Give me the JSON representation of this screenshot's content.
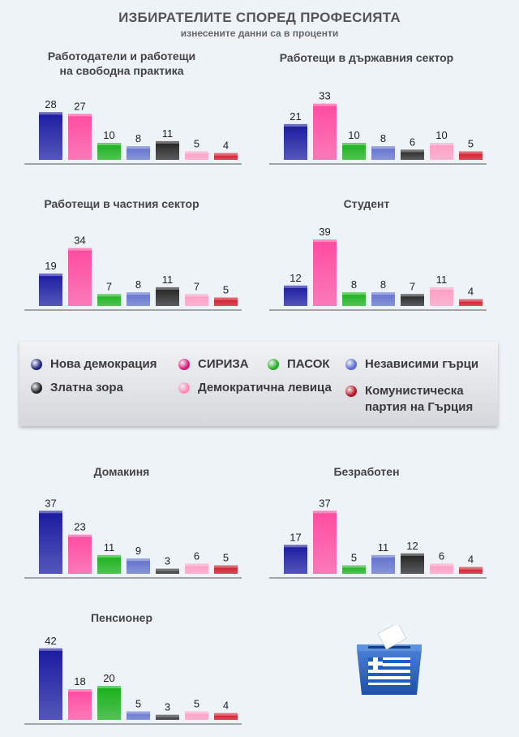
{
  "title": "ИЗБИРАТЕЛИТЕ СПОРЕД ПРОФЕСИЯТА",
  "subtitle": "изнесените данни са в проценти",
  "legend": [
    {
      "name": "Нова демокрация",
      "color": "#1a237e"
    },
    {
      "name": "СИРИЗА",
      "color": "#e0147a"
    },
    {
      "name": "ПАСОК",
      "color": "#22b022"
    },
    {
      "name": "Независими гърци",
      "color": "#5a6bd0"
    },
    {
      "name": "Златна зора",
      "color": "#222222"
    },
    {
      "name": "Демократична левица",
      "color": "#ff8ab8"
    },
    {
      "name": "Комунистическа партия на Гърция",
      "color": "#c0101c"
    }
  ],
  "bar_colors": [
    "#1a1aa0",
    "#ff4ba0",
    "#18b018",
    "#6070cc",
    "#222222",
    "#ff9cc4",
    "#d01020"
  ],
  "chart_data": [
    {
      "type": "bar",
      "title_lines": [
        "Работодатели и работещи",
        "на свободна практика"
      ],
      "categories": [
        "Нова демокрация",
        "СИРИЗА",
        "ПАСОК",
        "Независими гърци",
        "Златна зора",
        "Демократична левица",
        "Комунистическа партия на Гърция"
      ],
      "values": [
        28,
        27,
        10,
        8,
        11,
        5,
        4
      ]
    },
    {
      "type": "bar",
      "title_lines": [
        "Работещи в държавния сектор"
      ],
      "categories": [
        "Нова демокрация",
        "СИРИЗА",
        "ПАСОК",
        "Независими гърци",
        "Златна зора",
        "Демократична левица",
        "Комунистическа партия на Гърция"
      ],
      "values": [
        21,
        33,
        10,
        8,
        6,
        10,
        5
      ]
    },
    {
      "type": "bar",
      "title_lines": [
        "Работещи в частния сектор"
      ],
      "categories": [
        "Нова демокрация",
        "СИРИЗА",
        "ПАСОК",
        "Независими гърци",
        "Златна зора",
        "Демократична левица",
        "Комунистическа партия на Гърция"
      ],
      "values": [
        19,
        34,
        7,
        8,
        11,
        7,
        5
      ]
    },
    {
      "type": "bar",
      "title_lines": [
        "Студент"
      ],
      "categories": [
        "Нова демокрация",
        "СИРИЗА",
        "ПАСОК",
        "Независими гърци",
        "Златна зора",
        "Демократична левица",
        "Комунистическа партия на Гърция"
      ],
      "values": [
        12,
        39,
        8,
        8,
        7,
        11,
        4
      ]
    },
    {
      "type": "bar",
      "title_lines": [
        "Домакиня"
      ],
      "categories": [
        "Нова демокрация",
        "СИРИЗА",
        "ПАСОК",
        "Независими гърци",
        "Златна зора",
        "Демократична левица",
        "Комунистическа партия на Гърция"
      ],
      "values": [
        37,
        23,
        11,
        9,
        3,
        6,
        5
      ]
    },
    {
      "type": "bar",
      "title_lines": [
        "Безработен"
      ],
      "categories": [
        "Нова демокрация",
        "СИРИЗА",
        "ПАСОК",
        "Независими гърци",
        "Златна зора",
        "Демократична левица",
        "Комунистическа партия на Гърция"
      ],
      "values": [
        17,
        37,
        5,
        11,
        12,
        6,
        4
      ]
    },
    {
      "type": "bar",
      "title_lines": [
        "Пенсионер"
      ],
      "categories": [
        "Нова демокрация",
        "СИРИЗА",
        "ПАСОК",
        "Независими гърци",
        "Златна зора",
        "Демократична левица",
        "Комунистическа партия на Гърция"
      ],
      "values": [
        42,
        18,
        20,
        5,
        3,
        5,
        4
      ]
    }
  ]
}
